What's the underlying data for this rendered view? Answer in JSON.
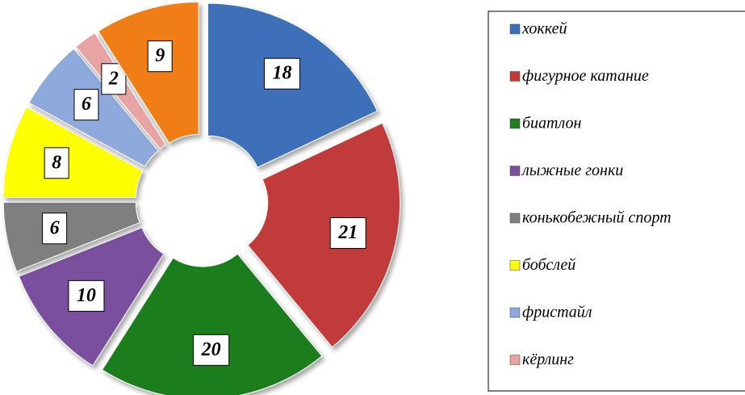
{
  "chart_data": {
    "type": "donut",
    "categories": [
      "хоккей",
      "фигурное катание",
      "биатлон",
      "лыжные гонки",
      "конькобежный спорт",
      "бобслей",
      "фристайл",
      "кёрлинг",
      null
    ],
    "values": [
      18,
      21,
      20,
      10,
      6,
      8,
      6,
      2,
      9
    ],
    "colors": [
      "#3d6fb8",
      "#c23b3b",
      "#1f7d1f",
      "#7a4f9e",
      "#7f7f7f",
      "#ffff00",
      "#8eaadc",
      "#e8a3a3",
      "#f17d12"
    ],
    "legend": "right"
  }
}
